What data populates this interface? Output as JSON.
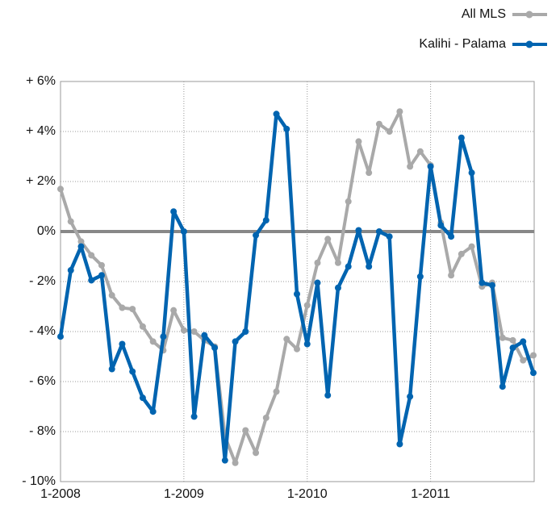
{
  "chart_data": {
    "type": "line",
    "categories": [
      "1-2008",
      null,
      null,
      null,
      null,
      null,
      null,
      null,
      null,
      null,
      null,
      null,
      "1-2009",
      null,
      null,
      null,
      null,
      null,
      null,
      null,
      null,
      null,
      null,
      null,
      "1-2010",
      null,
      null,
      null,
      null,
      null,
      null,
      null,
      null,
      null,
      null,
      null,
      "1-2011",
      null,
      null,
      null,
      null,
      null,
      null,
      null,
      null,
      null,
      null
    ],
    "series": [
      {
        "name": "All MLS",
        "color": "#a9a9a9",
        "values": [
          1.7,
          0.4,
          -0.4,
          -0.95,
          -1.35,
          -2.55,
          -3.05,
          -3.1,
          -3.8,
          -4.4,
          -4.75,
          -3.15,
          -3.95,
          -4.0,
          -4.35,
          -4.6,
          -8.2,
          -9.25,
          -7.95,
          -8.85,
          -7.45,
          -6.4,
          -4.3,
          -4.7,
          -2.95,
          -1.25,
          -0.3,
          -1.25,
          1.2,
          3.6,
          2.35,
          4.3,
          4.0,
          4.8,
          2.6,
          3.2,
          2.65,
          0.35,
          -1.75,
          -0.9,
          -0.6,
          -2.2,
          -2.05,
          -4.25,
          -4.35,
          -5.15,
          -4.95
        ]
      },
      {
        "name": "Kalihi - Palama",
        "color": "#0064b0",
        "values": [
          -4.2,
          -1.55,
          -0.6,
          -1.95,
          -1.75,
          -5.5,
          -4.5,
          -5.6,
          -6.65,
          -7.2,
          -4.2,
          0.8,
          0.0,
          -7.4,
          -4.15,
          -4.65,
          -9.15,
          -4.4,
          -4.0,
          -0.15,
          0.45,
          4.7,
          4.1,
          -2.5,
          -4.5,
          -2.05,
          -6.55,
          -2.25,
          -1.4,
          0.05,
          -1.4,
          0.0,
          -0.2,
          -8.5,
          -6.6,
          -1.8,
          2.6,
          0.25,
          -0.2,
          3.75,
          2.35,
          -2.05,
          -2.15,
          -6.2,
          -4.65,
          -4.4,
          -5.65
        ]
      }
    ],
    "ylim": [
      -10,
      6
    ],
    "yticks": [
      {
        "value": -10,
        "label": "- 10%"
      },
      {
        "value": -8,
        "label": "- 8%"
      },
      {
        "value": -6,
        "label": "- 6%"
      },
      {
        "value": -4,
        "label": "- 4%"
      },
      {
        "value": -2,
        "label": "- 2%"
      },
      {
        "value": 0,
        "label": "0%"
      },
      {
        "value": 2,
        "label": "+ 2%"
      },
      {
        "value": 4,
        "label": "+ 4%"
      },
      {
        "value": 6,
        "label": "+ 6%"
      }
    ],
    "grid": true,
    "legend": "top-right"
  }
}
